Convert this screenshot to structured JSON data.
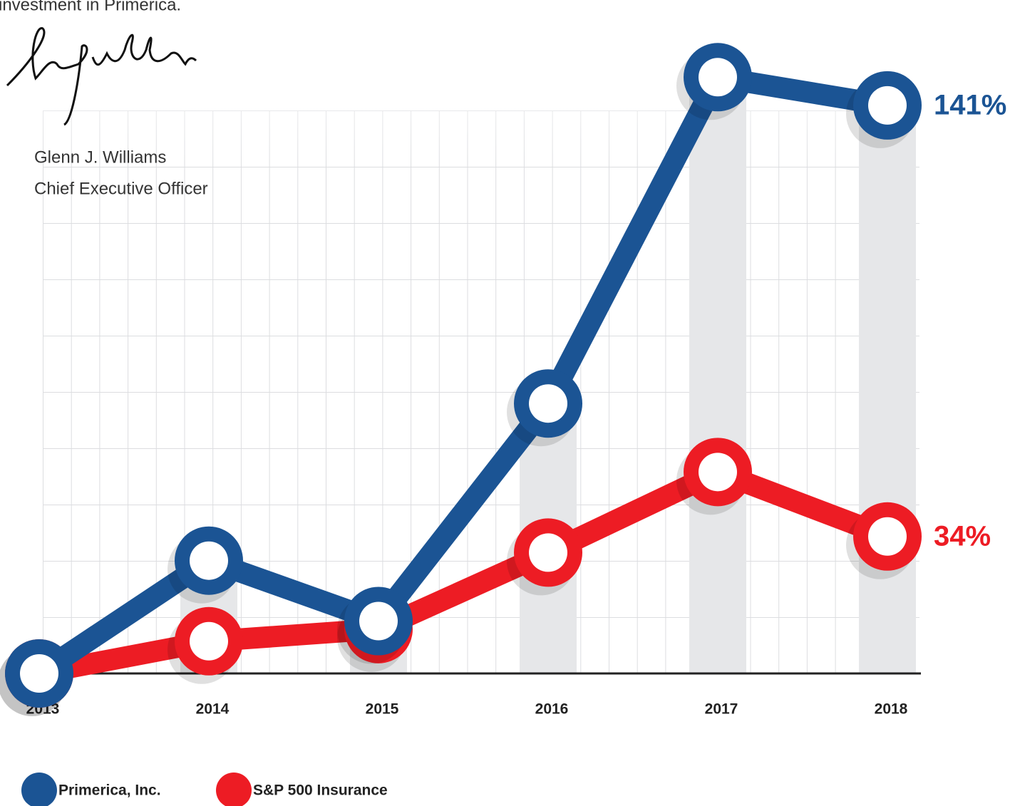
{
  "letter": {
    "closing": "investment in Primerica.",
    "name": "Glenn J. Williams",
    "role": "Chief Executive Officer"
  },
  "chart_data": {
    "type": "line",
    "categories": [
      "2013",
      "2014",
      "2015",
      "2016",
      "2017",
      "2018"
    ],
    "series": [
      {
        "name": "Primerica, Inc.",
        "color": "#1b5494",
        "values": [
          0,
          28,
          13,
          67,
          148,
          141
        ],
        "value_labels": [
          null,
          null,
          null,
          null,
          null,
          "141%"
        ]
      },
      {
        "name": "S&P 500 Insurance",
        "color": "#ed1c24",
        "values": [
          0,
          8,
          11,
          30,
          50,
          34
        ],
        "value_labels": [
          null,
          null,
          null,
          null,
          null,
          "34%"
        ]
      }
    ],
    "ylim": [
      0,
      150
    ],
    "grid": true
  }
}
